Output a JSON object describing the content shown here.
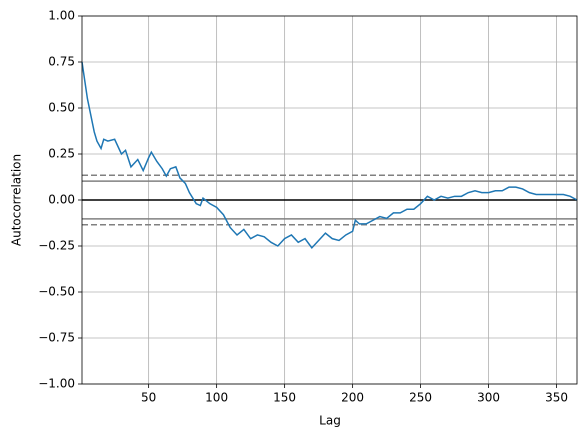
{
  "chart_data": {
    "type": "line",
    "x_label": "Lag",
    "y_label": "Autocorrelation",
    "x": [
      1,
      5,
      10,
      12,
      15,
      17,
      20,
      25,
      30,
      33,
      37,
      42,
      46,
      50,
      52,
      56,
      60,
      63,
      66,
      70,
      73,
      77,
      80,
      85,
      88,
      90,
      95,
      100,
      105,
      110,
      115,
      120,
      125,
      130,
      135,
      140,
      145,
      150,
      155,
      160,
      165,
      170,
      175,
      180,
      185,
      190,
      195,
      200,
      202,
      205,
      210,
      215,
      220,
      225,
      230,
      235,
      240,
      245,
      250,
      255,
      260,
      265,
      270,
      275,
      280,
      285,
      290,
      295,
      300,
      305,
      310,
      315,
      320,
      325,
      330,
      335,
      340,
      345,
      350,
      355,
      360,
      365
    ],
    "series": [
      {
        "color": "#1f77b4",
        "values": [
          0.75,
          0.55,
          0.37,
          0.32,
          0.28,
          0.33,
          0.32,
          0.33,
          0.25,
          0.27,
          0.18,
          0.22,
          0.16,
          0.23,
          0.26,
          0.21,
          0.17,
          0.13,
          0.17,
          0.18,
          0.12,
          0.09,
          0.04,
          -0.02,
          -0.03,
          0.01,
          -0.02,
          -0.04,
          -0.08,
          -0.15,
          -0.19,
          -0.16,
          -0.21,
          -0.19,
          -0.2,
          -0.23,
          -0.25,
          -0.21,
          -0.19,
          -0.23,
          -0.21,
          -0.26,
          -0.22,
          -0.18,
          -0.21,
          -0.22,
          -0.19,
          -0.17,
          -0.11,
          -0.13,
          -0.13,
          -0.11,
          -0.09,
          -0.1,
          -0.07,
          -0.07,
          -0.05,
          -0.05,
          -0.02,
          0.02,
          0.0,
          0.02,
          0.01,
          0.02,
          0.02,
          0.04,
          0.05,
          0.04,
          0.04,
          0.05,
          0.05,
          0.07,
          0.07,
          0.06,
          0.04,
          0.03,
          0.03,
          0.03,
          0.03,
          0.03,
          0.02,
          0.0
        ]
      }
    ],
    "reference_lines": [
      {
        "value": 0.1348,
        "color": "#808080",
        "dashed": true
      },
      {
        "value": 0.1026,
        "color": "#808080",
        "dashed": false
      },
      {
        "value": 0,
        "color": "#000000",
        "dashed": false
      },
      {
        "value": -0.1026,
        "color": "#808080",
        "dashed": false
      },
      {
        "value": -0.1348,
        "color": "#808080",
        "dashed": true
      }
    ],
    "xlim": [
      1,
      365
    ],
    "ylim": [
      -1,
      1
    ],
    "xticks": [
      50,
      100,
      150,
      200,
      250,
      300,
      350
    ],
    "yticks": [
      {
        "value": -1,
        "label": "−1.00"
      },
      {
        "value": -0.75,
        "label": "−0.75"
      },
      {
        "value": -0.5,
        "label": "−0.50"
      },
      {
        "value": -0.25,
        "label": "−0.25"
      },
      {
        "value": 0,
        "label": "0.00"
      },
      {
        "value": 0.25,
        "label": "0.25"
      },
      {
        "value": 0.5,
        "label": "0.50"
      },
      {
        "value": 0.75,
        "label": "0.75"
      },
      {
        "value": 1,
        "label": "1.00"
      }
    ],
    "grid": true
  }
}
